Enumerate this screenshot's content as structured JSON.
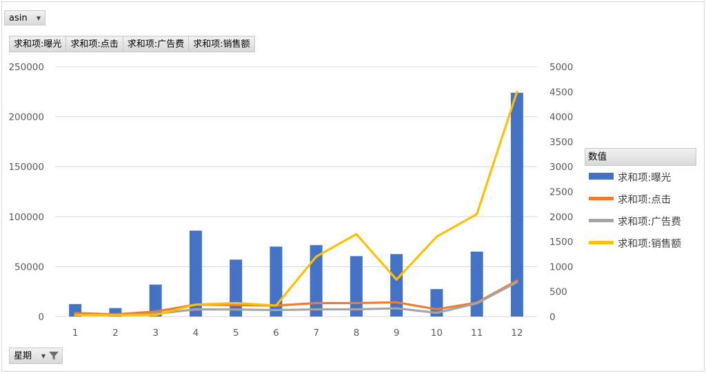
{
  "filters": {
    "asin": "asin",
    "week": "星期"
  },
  "value_fields": [
    "求和项:曝光",
    "求和项:点击",
    "求和项:广告费",
    "求和项:销售额"
  ],
  "legend": {
    "title": "数值"
  },
  "chart_data": {
    "type": "bar",
    "categories": [
      "1",
      "2",
      "3",
      "4",
      "5",
      "6",
      "7",
      "8",
      "9",
      "10",
      "11",
      "12"
    ],
    "y_left": {
      "ylim": [
        0,
        250000
      ],
      "ticks": [
        "0",
        "50000",
        "100000",
        "150000",
        "200000",
        "250000"
      ]
    },
    "y_right": {
      "ylim": [
        0,
        5000
      ],
      "ticks": [
        "0",
        "500",
        "1000",
        "1500",
        "2000",
        "2500",
        "3000",
        "3500",
        "4000",
        "4500",
        "5000"
      ]
    },
    "grid": true,
    "legend_placement": "right",
    "series": [
      {
        "name": "求和项:曝光",
        "kind": "bar",
        "axis": "left",
        "color": "#4472C4",
        "values": [
          12500,
          8500,
          32000,
          86000,
          57000,
          70000,
          71500,
          60500,
          62500,
          27500,
          65000,
          224000
        ]
      },
      {
        "name": "求和项:点击",
        "kind": "line",
        "axis": "right",
        "color": "#ED7D31",
        "values": [
          70,
          45,
          100,
          240,
          230,
          220,
          270,
          270,
          285,
          145,
          280,
          720
        ]
      },
      {
        "name": "求和项:广告费",
        "kind": "line",
        "axis": "right",
        "color": "#A5A5A5",
        "values": [
          35,
          25,
          55,
          145,
          140,
          130,
          145,
          145,
          165,
          75,
          265,
          690
        ]
      },
      {
        "name": "求和项:销售额",
        "kind": "line",
        "axis": "right",
        "color": "#FFC000",
        "values": [
          30,
          30,
          30,
          240,
          270,
          220,
          1200,
          1650,
          740,
          1600,
          2050,
          4500
        ]
      }
    ]
  }
}
